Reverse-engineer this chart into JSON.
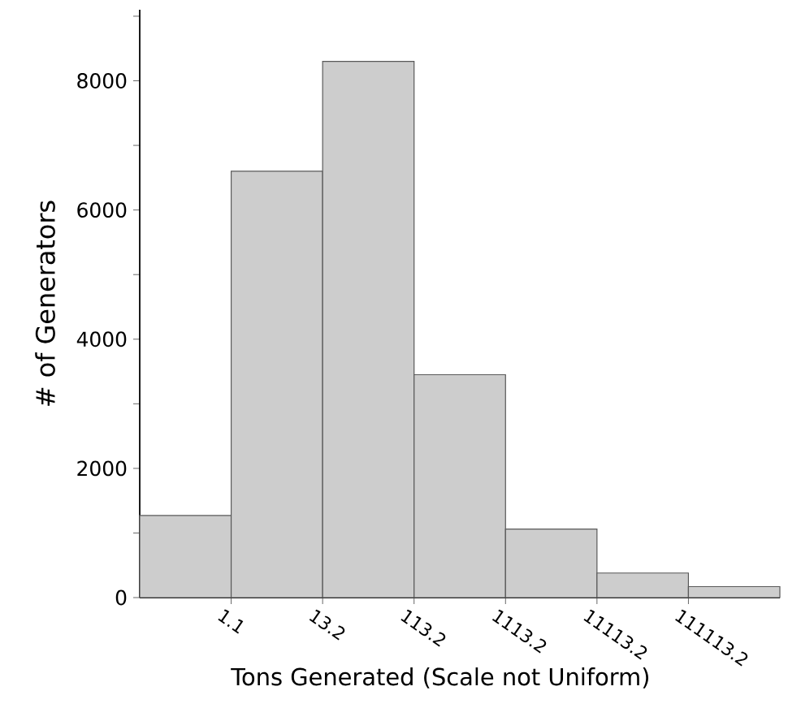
{
  "chart_data": {
    "type": "bar",
    "xlabel": "Tons Generated (Scale not Uniform)",
    "ylabel": "# of Generators",
    "categories": [
      null,
      null,
      null,
      null,
      null,
      null,
      null
    ],
    "values": [
      1270,
      6600,
      8300,
      3450,
      1060,
      380,
      170
    ],
    "color": "#cdcdcd",
    "annotations": [
      "1.1",
      "13.2",
      "113.2",
      "1113.2",
      "11113.2",
      "111113.2"
    ],
    "ylim": [
      0,
      9100
    ],
    "yticks": [
      0,
      {
        "value": 1000,
        "label": null
      },
      2000,
      {
        "value": 3000,
        "label": null
      },
      4000,
      {
        "value": 5000,
        "label": null
      },
      6000,
      {
        "value": 7000,
        "label": null
      },
      8000,
      {
        "value": 9000,
        "label": null
      }
    ],
    "grid": false
  }
}
